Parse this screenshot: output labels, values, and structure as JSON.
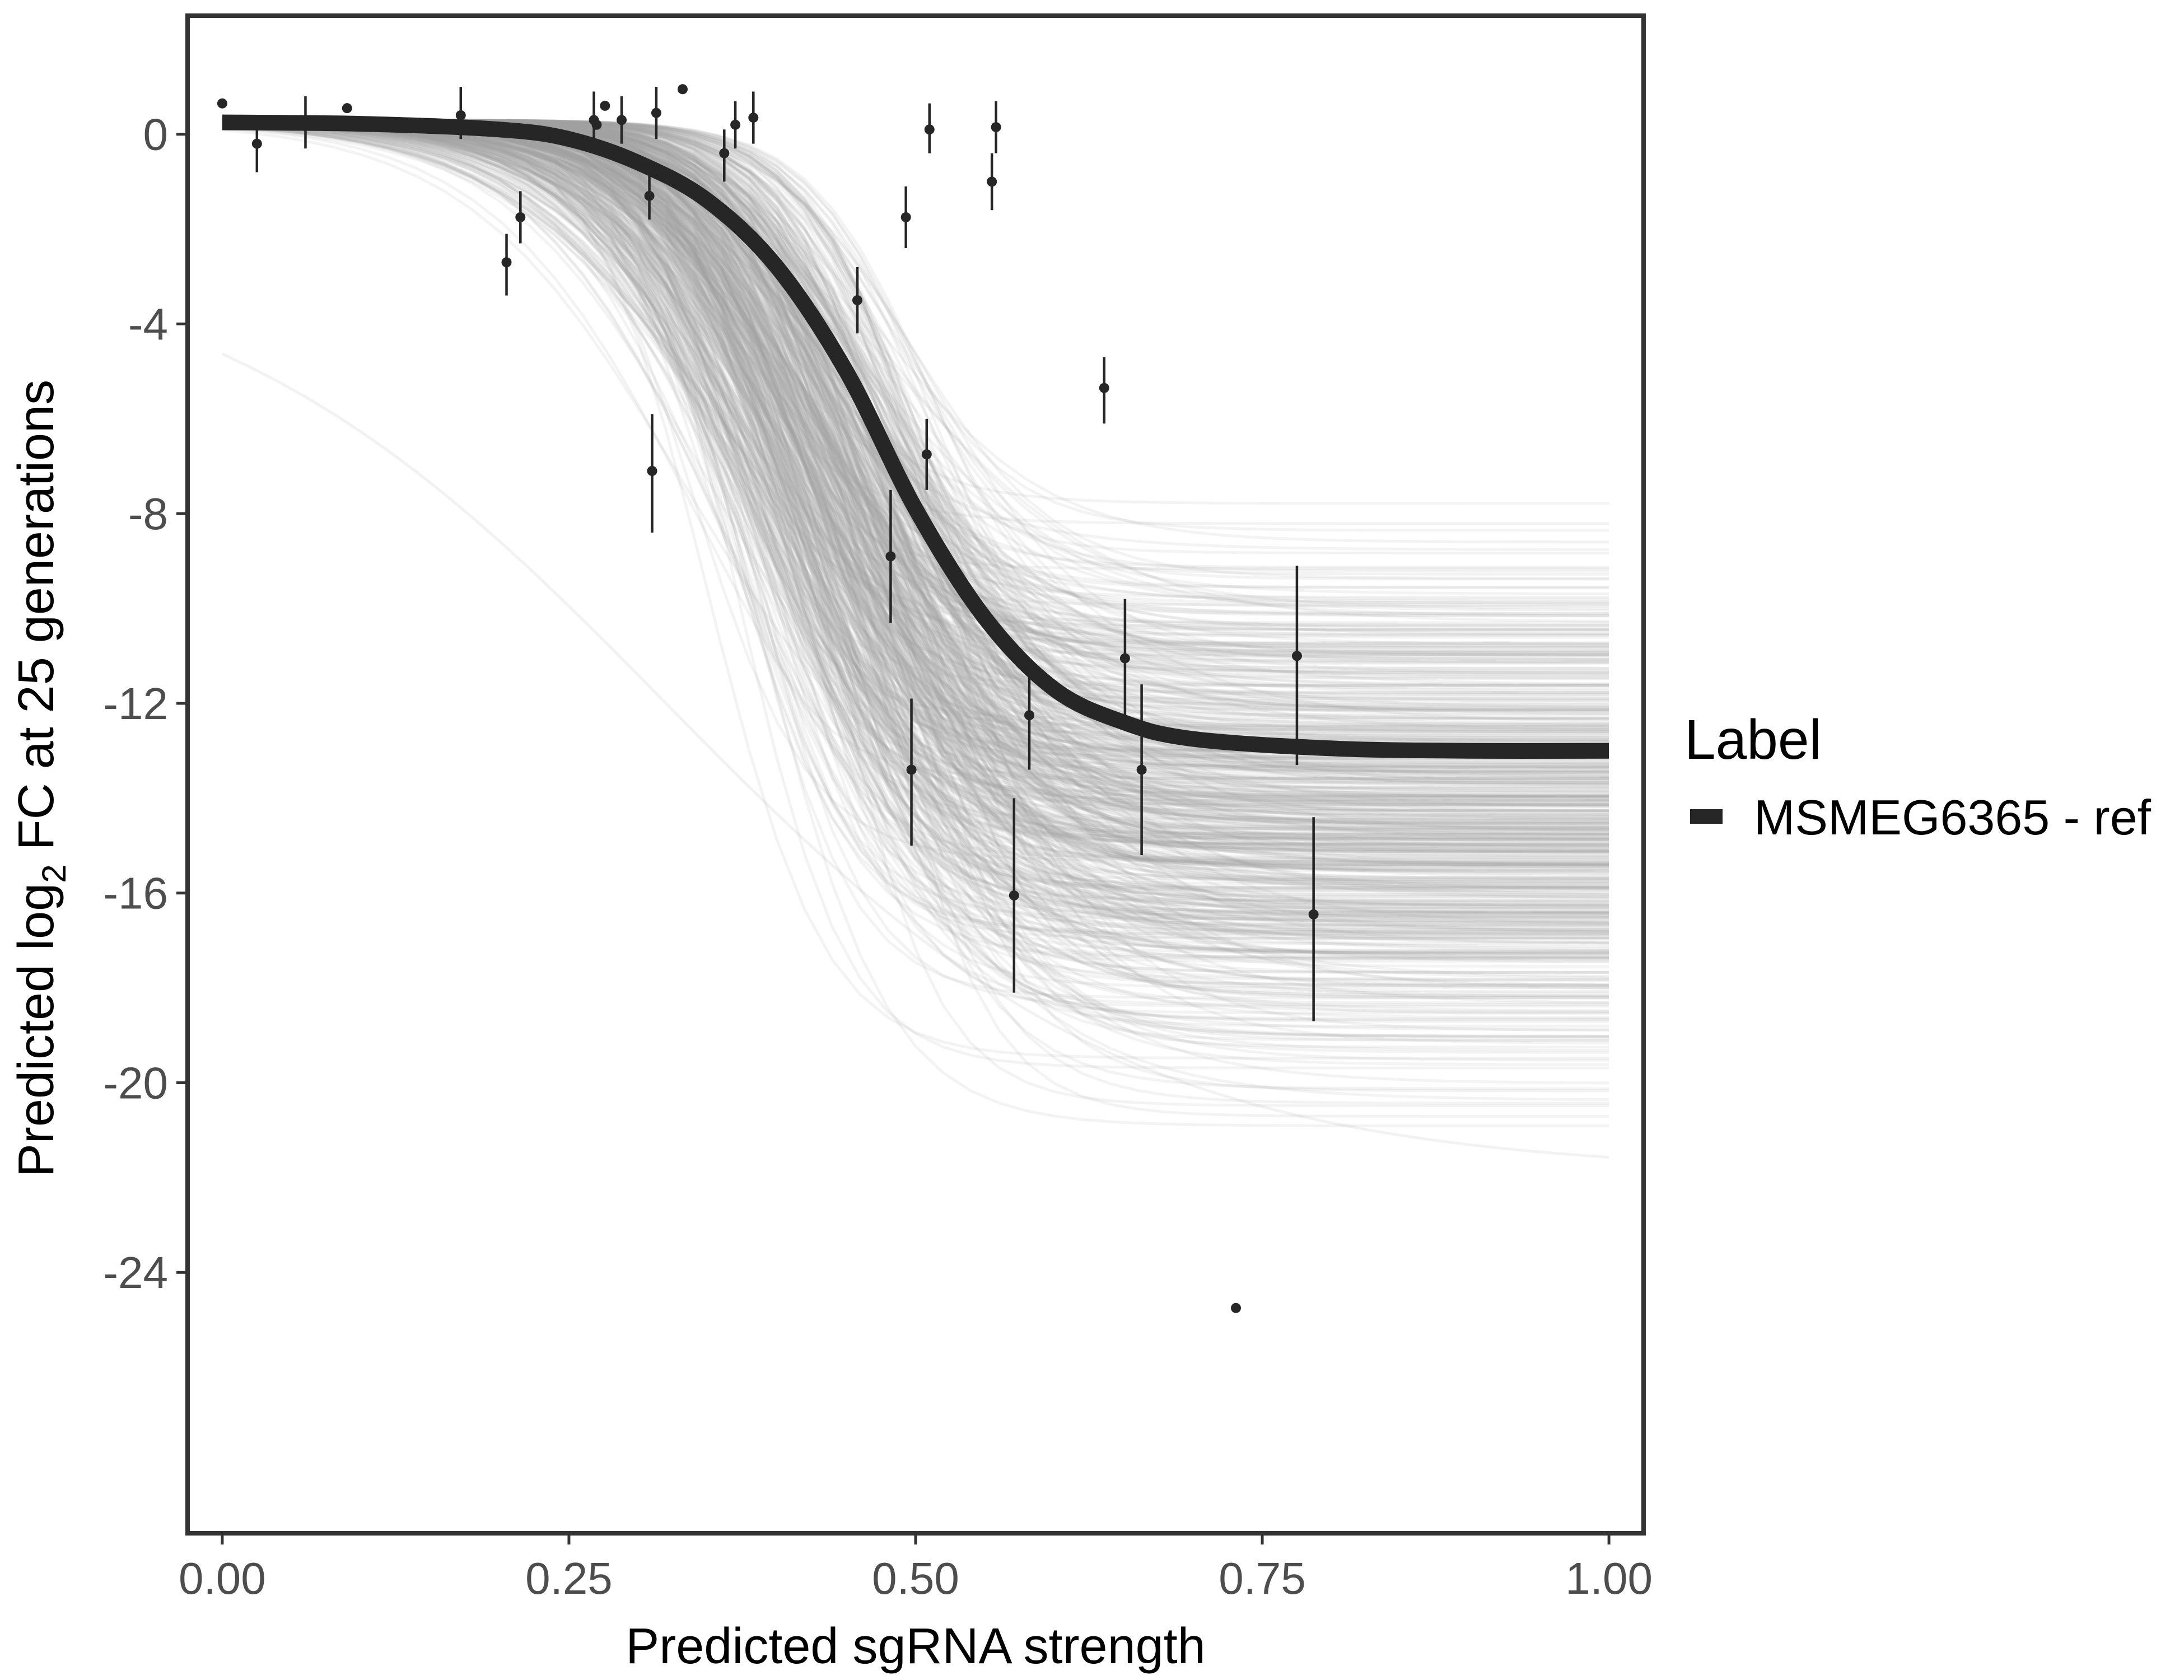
{
  "chart_data": {
    "type": "line",
    "xlabel": "Predicted sgRNA strength",
    "ylabel_parts": {
      "before": "Predicted  log",
      "sub": "2",
      "after": " FC at 25 generations"
    },
    "xlim": [
      -0.025,
      1.025
    ],
    "ylim": [
      -29.5,
      2.5
    ],
    "x_ticks": [
      {
        "value": 0.0,
        "label": "0.00"
      },
      {
        "value": 0.25,
        "label": "0.25"
      },
      {
        "value": 0.5,
        "label": "0.50"
      },
      {
        "value": 0.75,
        "label": "0.75"
      },
      {
        "value": 1.0,
        "label": "1.00"
      }
    ],
    "y_ticks": [
      {
        "value": 0,
        "label": "0"
      },
      {
        "value": -4,
        "label": "-4"
      },
      {
        "value": -8,
        "label": "-8"
      },
      {
        "value": -12,
        "label": "-12"
      },
      {
        "value": -16,
        "label": "-16"
      },
      {
        "value": -20,
        "label": "-20"
      },
      {
        "value": -24,
        "label": "-24"
      }
    ],
    "grid": false,
    "legend": {
      "title": "Label",
      "position": "right",
      "entries": [
        {
          "label": "MSMEG6365 - ref",
          "color": "#262626"
        }
      ]
    },
    "fit_curve": {
      "color": "#262626",
      "x": [
        0.0,
        0.1,
        0.2,
        0.25,
        0.3,
        0.35,
        0.4,
        0.45,
        0.5,
        0.55,
        0.6,
        0.65,
        0.7,
        0.8,
        0.9,
        1.0
      ],
      "y": [
        0.25,
        0.22,
        0.1,
        -0.1,
        -0.6,
        -1.4,
        -2.8,
        -5.0,
        -7.9,
        -10.2,
        -11.7,
        -12.4,
        -12.75,
        -12.95,
        -13.0,
        -13.0
      ]
    },
    "posterior_band": {
      "color": "#a6a6a6",
      "draws": 600,
      "lower_asymptote_range": [
        -21.9,
        -7.0
      ]
    },
    "points": [
      {
        "x": 0.0,
        "y": 0.65
      },
      {
        "x": 0.025,
        "y": -0.2,
        "lo": -0.8,
        "hi": 0.4
      },
      {
        "x": 0.06,
        "y": 0.2,
        "lo": -0.3,
        "hi": 0.8
      },
      {
        "x": 0.09,
        "y": 0.55
      },
      {
        "x": 0.172,
        "y": 0.4,
        "lo": -0.1,
        "hi": 1.0
      },
      {
        "x": 0.205,
        "y": -2.7,
        "lo": -3.4,
        "hi": -2.1
      },
      {
        "x": 0.215,
        "y": -1.75,
        "lo": -2.3,
        "hi": -1.2
      },
      {
        "x": 0.268,
        "y": 0.3,
        "lo": -0.1,
        "hi": 0.9
      },
      {
        "x": 0.27,
        "y": 0.2
      },
      {
        "x": 0.276,
        "y": 0.6
      },
      {
        "x": 0.288,
        "y": 0.3,
        "lo": -0.2,
        "hi": 0.8
      },
      {
        "x": 0.308,
        "y": -1.3,
        "lo": -1.8,
        "hi": -0.7
      },
      {
        "x": 0.31,
        "y": -7.1,
        "lo": -8.4,
        "hi": -5.9
      },
      {
        "x": 0.313,
        "y": 0.45,
        "lo": -0.1,
        "hi": 1.0
      },
      {
        "x": 0.332,
        "y": 0.95
      },
      {
        "x": 0.362,
        "y": -0.4,
        "lo": -1.0,
        "hi": 0.1
      },
      {
        "x": 0.37,
        "y": 0.2,
        "lo": -0.3,
        "hi": 0.7
      },
      {
        "x": 0.383,
        "y": 0.35,
        "lo": -0.2,
        "hi": 0.9
      },
      {
        "x": 0.458,
        "y": -3.5,
        "lo": -4.2,
        "hi": -2.8
      },
      {
        "x": 0.482,
        "y": -8.9,
        "lo": -10.3,
        "hi": -7.5
      },
      {
        "x": 0.493,
        "y": -1.75,
        "lo": -2.4,
        "hi": -1.1
      },
      {
        "x": 0.497,
        "y": -13.4,
        "lo": -15.0,
        "hi": -11.9
      },
      {
        "x": 0.508,
        "y": -6.75,
        "lo": -7.5,
        "hi": -6.0
      },
      {
        "x": 0.51,
        "y": 0.1,
        "lo": -0.4,
        "hi": 0.65
      },
      {
        "x": 0.555,
        "y": -1.0,
        "lo": -1.6,
        "hi": -0.4
      },
      {
        "x": 0.558,
        "y": 0.15,
        "lo": -0.4,
        "hi": 0.7
      },
      {
        "x": 0.571,
        "y": -16.05,
        "lo": -18.1,
        "hi": -14.0
      },
      {
        "x": 0.582,
        "y": -12.25,
        "lo": -13.4,
        "hi": -11.1
      },
      {
        "x": 0.636,
        "y": -5.35,
        "lo": -6.1,
        "hi": -4.7
      },
      {
        "x": 0.651,
        "y": -11.05,
        "lo": -12.3,
        "hi": -9.8
      },
      {
        "x": 0.663,
        "y": -13.4,
        "lo": -15.2,
        "hi": -11.6
      },
      {
        "x": 0.731,
        "y": -24.75
      },
      {
        "x": 0.775,
        "y": -11.0,
        "lo": -13.3,
        "hi": -9.1
      },
      {
        "x": 0.787,
        "y": -16.45,
        "lo": -18.7,
        "hi": -14.4
      }
    ]
  }
}
